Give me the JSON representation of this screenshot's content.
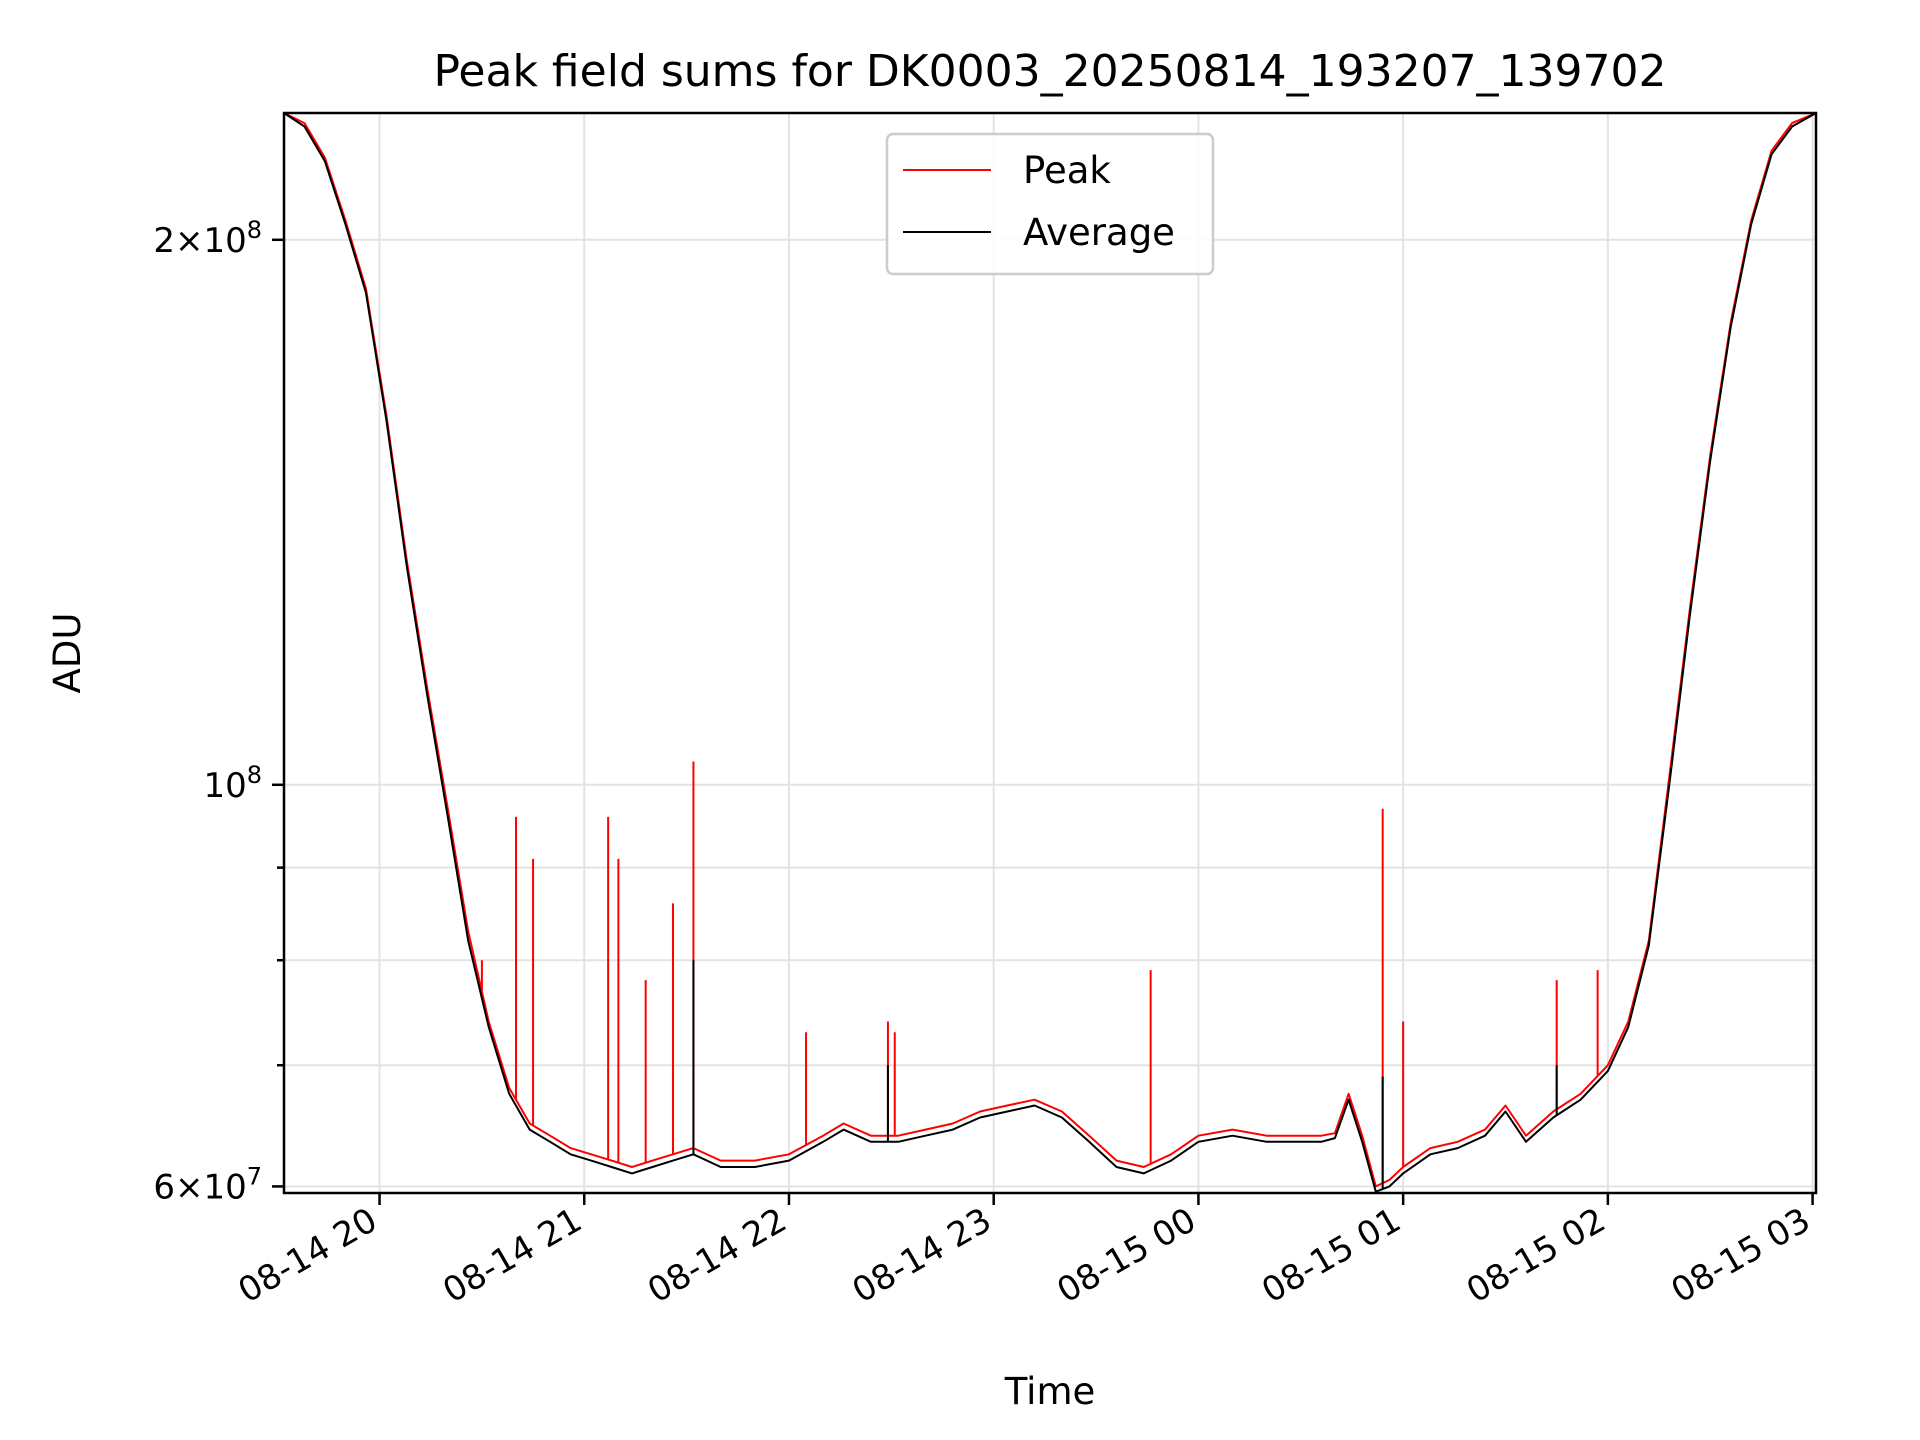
{
  "chart_data": {
    "type": "line",
    "title": "Peak field sums for DK0003_20250814_193207_139702",
    "xlabel": "Time",
    "ylabel": "ADU",
    "yscale": "log",
    "xlim": [
      "2025-08-14 19:32",
      "2025-08-15 03:01"
    ],
    "ylim": [
      59500000,
      235000000
    ],
    "grid": true,
    "legend_position": "top-center",
    "x_ticks": [
      {
        "label": "08-14 20",
        "value": "2025-08-14 20:00"
      },
      {
        "label": "08-14 21",
        "value": "2025-08-14 21:00"
      },
      {
        "label": "08-14 22",
        "value": "2025-08-14 22:00"
      },
      {
        "label": "08-14 23",
        "value": "2025-08-14 23:00"
      },
      {
        "label": "08-15 00",
        "value": "2025-08-15 00:00"
      },
      {
        "label": "08-15 01",
        "value": "2025-08-15 01:00"
      },
      {
        "label": "08-15 02",
        "value": "2025-08-15 02:00"
      },
      {
        "label": "08-15 03",
        "value": "2025-08-15 03:00"
      }
    ],
    "y_major_ticks": [
      {
        "value": 60000000,
        "base": "6×10",
        "exp": "7"
      },
      {
        "value": 100000000,
        "base": "10",
        "exp": "8"
      },
      {
        "value": 200000000,
        "base": "2×10",
        "exp": "8"
      }
    ],
    "y_minor_ticks": [
      70000000,
      80000000,
      90000000
    ],
    "series": [
      {
        "name": "Peak",
        "color": "#ff0000",
        "x": [
          "2025-08-14 19:32",
          "2025-08-14 19:38",
          "2025-08-14 19:44",
          "2025-08-14 19:50",
          "2025-08-14 19:56",
          "2025-08-14 20:02",
          "2025-08-14 20:08",
          "2025-08-14 20:14",
          "2025-08-14 20:20",
          "2025-08-14 20:26",
          "2025-08-14 20:32",
          "2025-08-14 20:38",
          "2025-08-14 20:44",
          "2025-08-14 20:50",
          "2025-08-14 20:56",
          "2025-08-14 21:02",
          "2025-08-14 21:08",
          "2025-08-14 21:14",
          "2025-08-14 21:20",
          "2025-08-14 21:26",
          "2025-08-14 21:32",
          "2025-08-14 21:40",
          "2025-08-14 21:50",
          "2025-08-14 22:00",
          "2025-08-14 22:10",
          "2025-08-14 22:16",
          "2025-08-14 22:24",
          "2025-08-14 22:32",
          "2025-08-14 22:40",
          "2025-08-14 22:48",
          "2025-08-14 22:56",
          "2025-08-14 23:04",
          "2025-08-14 23:12",
          "2025-08-14 23:20",
          "2025-08-14 23:28",
          "2025-08-14 23:36",
          "2025-08-14 23:44",
          "2025-08-14 23:52",
          "2025-08-15 00:00",
          "2025-08-15 00:10",
          "2025-08-15 00:20",
          "2025-08-15 00:30",
          "2025-08-15 00:36",
          "2025-08-15 00:40",
          "2025-08-15 00:44",
          "2025-08-15 00:48",
          "2025-08-15 00:52",
          "2025-08-15 00:56",
          "2025-08-15 01:00",
          "2025-08-15 01:08",
          "2025-08-15 01:16",
          "2025-08-15 01:24",
          "2025-08-15 01:30",
          "2025-08-15 01:36",
          "2025-08-15 01:44",
          "2025-08-15 01:52",
          "2025-08-15 02:00",
          "2025-08-15 02:06",
          "2025-08-15 02:12",
          "2025-08-15 02:18",
          "2025-08-15 02:24",
          "2025-08-15 02:30",
          "2025-08-15 02:36",
          "2025-08-15 02:42",
          "2025-08-15 02:48",
          "2025-08-15 02:54",
          "2025-08-15 03:01"
        ],
        "values": [
          235000000,
          232000000,
          222000000,
          205000000,
          188000000,
          160000000,
          133000000,
          113000000,
          97000000,
          83000000,
          74000000,
          68000000,
          65000000,
          64000000,
          63000000,
          62500000,
          62000000,
          61500000,
          62000000,
          62500000,
          63000000,
          62000000,
          62000000,
          62500000,
          64000000,
          65000000,
          64000000,
          64000000,
          64500000,
          65000000,
          66000000,
          66500000,
          67000000,
          66000000,
          64000000,
          62000000,
          61500000,
          62500000,
          64000000,
          64500000,
          64000000,
          64000000,
          64000000,
          64200000,
          67500000,
          64000000,
          60000000,
          60500000,
          61500000,
          63000000,
          63500000,
          64500000,
          66500000,
          64000000,
          66000000,
          67500000,
          70000000,
          74000000,
          82000000,
          101000000,
          125000000,
          152000000,
          180000000,
          205000000,
          224000000,
          232000000,
          235000000
        ],
        "spikes": [
          {
            "x": "2025-08-14 20:30",
            "value": 80000000
          },
          {
            "x": "2025-08-14 20:40",
            "value": 96000000
          },
          {
            "x": "2025-08-14 20:45",
            "value": 91000000
          },
          {
            "x": "2025-08-14 21:07",
            "value": 96000000
          },
          {
            "x": "2025-08-14 21:10",
            "value": 91000000
          },
          {
            "x": "2025-08-14 21:18",
            "value": 78000000
          },
          {
            "x": "2025-08-14 21:26",
            "value": 86000000
          },
          {
            "x": "2025-08-14 21:32",
            "value": 103000000
          },
          {
            "x": "2025-08-14 22:05",
            "value": 73000000
          },
          {
            "x": "2025-08-14 22:29",
            "value": 74000000
          },
          {
            "x": "2025-08-14 22:31",
            "value": 73000000
          },
          {
            "x": "2025-08-14 23:46",
            "value": 79000000
          },
          {
            "x": "2025-08-15 00:54",
            "value": 97000000
          },
          {
            "x": "2025-08-15 01:00",
            "value": 74000000
          },
          {
            "x": "2025-08-15 01:45",
            "value": 78000000
          },
          {
            "x": "2025-08-15 01:57",
            "value": 79000000
          }
        ]
      },
      {
        "name": "Average",
        "color": "#000000",
        "x": [
          "2025-08-14 19:32",
          "2025-08-14 19:38",
          "2025-08-14 19:44",
          "2025-08-14 19:50",
          "2025-08-14 19:56",
          "2025-08-14 20:02",
          "2025-08-14 20:08",
          "2025-08-14 20:14",
          "2025-08-14 20:20",
          "2025-08-14 20:26",
          "2025-08-14 20:32",
          "2025-08-14 20:38",
          "2025-08-14 20:44",
          "2025-08-14 20:50",
          "2025-08-14 20:56",
          "2025-08-14 21:02",
          "2025-08-14 21:08",
          "2025-08-14 21:14",
          "2025-08-14 21:20",
          "2025-08-14 21:26",
          "2025-08-14 21:32",
          "2025-08-14 21:40",
          "2025-08-14 21:50",
          "2025-08-14 22:00",
          "2025-08-14 22:10",
          "2025-08-14 22:16",
          "2025-08-14 22:24",
          "2025-08-14 22:32",
          "2025-08-14 22:40",
          "2025-08-14 22:48",
          "2025-08-14 22:56",
          "2025-08-14 23:04",
          "2025-08-14 23:12",
          "2025-08-14 23:20",
          "2025-08-14 23:28",
          "2025-08-14 23:36",
          "2025-08-14 23:44",
          "2025-08-14 23:52",
          "2025-08-15 00:00",
          "2025-08-15 00:10",
          "2025-08-15 00:20",
          "2025-08-15 00:30",
          "2025-08-15 00:36",
          "2025-08-15 00:40",
          "2025-08-15 00:44",
          "2025-08-15 00:48",
          "2025-08-15 00:52",
          "2025-08-15 00:56",
          "2025-08-15 01:00",
          "2025-08-15 01:08",
          "2025-08-15 01:16",
          "2025-08-15 01:24",
          "2025-08-15 01:30",
          "2025-08-15 01:36",
          "2025-08-15 01:44",
          "2025-08-15 01:52",
          "2025-08-15 02:00",
          "2025-08-15 02:06",
          "2025-08-15 02:12",
          "2025-08-15 02:18",
          "2025-08-15 02:24",
          "2025-08-15 02:30",
          "2025-08-15 02:36",
          "2025-08-15 02:42",
          "2025-08-15 02:48",
          "2025-08-15 02:54",
          "2025-08-15 03:01"
        ],
        "values": [
          235000000,
          231000000,
          221000000,
          204000000,
          187000000,
          159000000,
          132000000,
          112000000,
          96000000,
          82000000,
          73500000,
          67500000,
          64500000,
          63500000,
          62500000,
          62000000,
          61500000,
          61000000,
          61500000,
          62000000,
          62500000,
          61500000,
          61500000,
          62000000,
          63500000,
          64500000,
          63500000,
          63500000,
          64000000,
          64500000,
          65500000,
          66000000,
          66500000,
          65500000,
          63500000,
          61500000,
          61000000,
          62000000,
          63500000,
          64000000,
          63500000,
          63500000,
          63500000,
          63800000,
          67000000,
          63500000,
          59600000,
          60000000,
          61000000,
          62500000,
          63000000,
          64000000,
          66000000,
          63500000,
          65500000,
          67000000,
          69500000,
          73500000,
          81500000,
          100000000,
          124000000,
          151000000,
          179000000,
          204000000,
          223000000,
          231000000,
          235000000
        ],
        "spikes": [
          {
            "x": "2025-08-14 21:32",
            "value": 80000000
          },
          {
            "x": "2025-08-14 22:29",
            "value": 70000000
          },
          {
            "x": "2025-08-15 00:54",
            "value": 69000000
          },
          {
            "x": "2025-08-15 01:45",
            "value": 70000000
          }
        ]
      }
    ]
  }
}
